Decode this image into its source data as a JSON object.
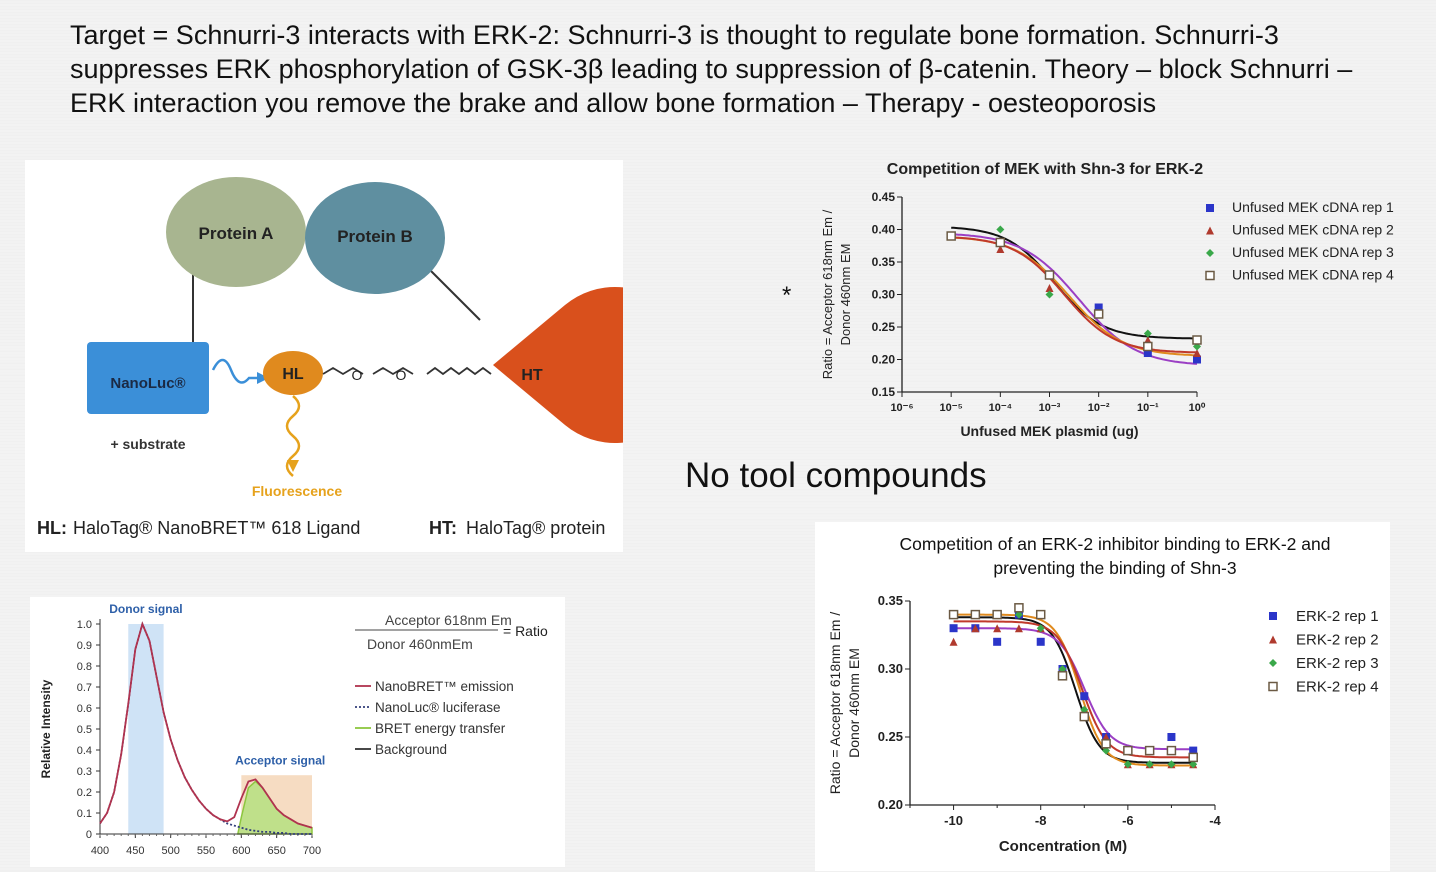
{
  "header": {
    "text": "Target = Schnurri-3 interacts with ERK-2: Schnurri-3 is thought to regulate bone formation. Schnurri-3 suppresses ERK phosphorylation of GSK-3β leading to suppression of β-catenin. Theory – block Schnurri – ERK interaction you remove the brake and allow bone formation – Therapy - oesteoporosis"
  },
  "diagram": {
    "protein_a": "Protein A",
    "protein_b": "Protein B",
    "nanoluc": "NanoLuc®",
    "substrate": "+ substrate",
    "hl": "HL",
    "ht": "HT",
    "fluorescence": "Fluorescence",
    "hl_legend_key": "HL:",
    "hl_legend_text": "HaloTag® NanoBRET™ 618 Ligand",
    "ht_legend_key": "HT:",
    "ht_legend_text": "HaloTag® protein",
    "colors": {
      "protein_a": "#a8b590",
      "protein_b": "#5f8fa0",
      "nanoluc": "#3b8fd8",
      "hl": "#e08a1e",
      "ht": "#d9501c",
      "fluorescence": "#e6a21c"
    }
  },
  "notes": {
    "no_tool": "No tool compounds",
    "asterisk": "*"
  },
  "chart_data": [
    {
      "type": "line",
      "id": "spectrum",
      "title": "",
      "xlabel": "",
      "ylabel": "Relative Intensity",
      "xlim": [
        400,
        700
      ],
      "ylim": [
        0,
        1.0
      ],
      "x_ticks": [
        "400",
        "450",
        "500",
        "550",
        "600",
        "650",
        "700"
      ],
      "y_ticks": [
        "0",
        "0.1",
        "0.2",
        "0.3",
        "0.4",
        "0.5",
        "0.6",
        "0.7",
        "0.8",
        "0.9",
        "1.0"
      ],
      "donor_label": "Donor signal",
      "acceptor_label": "Acceptor signal",
      "donor_band": [
        440,
        490
      ],
      "acceptor_band": [
        600,
        700
      ],
      "formula_num": "Acceptor 618nm Em",
      "formula_den": "Donor 460nmEm",
      "formula_eq": "= Ratio",
      "legend": [
        {
          "label": "NanoBRET™ emission",
          "color": "#b0334f",
          "style": "solid"
        },
        {
          "label": "NanoLuc® luciferase",
          "color": "#333f7a",
          "style": "dotted"
        },
        {
          "label": "BRET energy transfer",
          "color": "#8dc63f",
          "style": "solid"
        },
        {
          "label": "Background",
          "color": "#333333",
          "style": "solid"
        }
      ],
      "series": [
        {
          "name": "NanoBRET™ emission",
          "x": [
            400,
            410,
            420,
            430,
            440,
            450,
            460,
            470,
            480,
            490,
            500,
            510,
            520,
            530,
            540,
            550,
            560,
            570,
            580,
            590,
            600,
            610,
            620,
            630,
            640,
            650,
            660,
            670,
            680,
            690,
            700
          ],
          "y": [
            0.05,
            0.1,
            0.2,
            0.38,
            0.62,
            0.88,
            1.0,
            0.92,
            0.75,
            0.58,
            0.45,
            0.35,
            0.27,
            0.21,
            0.16,
            0.12,
            0.09,
            0.07,
            0.06,
            0.08,
            0.17,
            0.25,
            0.26,
            0.22,
            0.17,
            0.12,
            0.09,
            0.07,
            0.05,
            0.04,
            0.03
          ]
        },
        {
          "name": "NanoLuc® luciferase",
          "x": [
            400,
            410,
            420,
            430,
            440,
            450,
            460,
            470,
            480,
            490,
            500,
            510,
            520,
            530,
            540,
            550,
            560,
            570,
            580,
            590,
            600,
            610,
            620,
            630,
            640,
            650,
            660,
            670,
            680,
            690,
            700
          ],
          "y": [
            0.05,
            0.1,
            0.2,
            0.38,
            0.62,
            0.88,
            1.0,
            0.92,
            0.75,
            0.58,
            0.45,
            0.35,
            0.27,
            0.21,
            0.16,
            0.12,
            0.09,
            0.07,
            0.05,
            0.04,
            0.03,
            0.02,
            0.015,
            0.01,
            0.01,
            0.005,
            0.005,
            0.0,
            0.0,
            0.0,
            0.0
          ]
        },
        {
          "name": "BRET energy transfer",
          "x": [
            595,
            600,
            610,
            620,
            630,
            640,
            650,
            660,
            670,
            680,
            690,
            700
          ],
          "y": [
            0.0,
            0.08,
            0.22,
            0.25,
            0.22,
            0.17,
            0.12,
            0.09,
            0.07,
            0.05,
            0.04,
            0.03
          ]
        }
      ]
    },
    {
      "type": "scatter",
      "id": "mek",
      "title": "Competition of MEK with Shn-3 for ERK-2",
      "xlabel": "Unfused MEK plasmid (ug)",
      "ylabel_line1": "Ratio = Acceptor 618nm Em /",
      "ylabel_line2": "Donor 460nm EM",
      "x_scale": "log",
      "xlim": [
        1e-06,
        1
      ],
      "ylim": [
        0.15,
        0.45
      ],
      "x_ticks": [
        "10⁻⁶",
        "10⁻⁵",
        "10⁻⁴",
        "10⁻³",
        "10⁻²",
        "10⁻¹",
        "10⁰"
      ],
      "y_ticks": [
        "0.15",
        "0.20",
        "0.25",
        "0.30",
        "0.35",
        "0.40",
        "0.45"
      ],
      "legend_position": "top-right",
      "x": [
        1e-05,
        0.0001,
        0.001,
        0.01,
        0.1,
        1
      ],
      "series": [
        {
          "name": "Unfused MEK cDNA rep 1",
          "marker": "square",
          "color": "#2b35c9",
          "values": [
            0.39,
            0.38,
            0.33,
            0.28,
            0.21,
            0.2
          ]
        },
        {
          "name": "Unfused MEK cDNA rep 2",
          "marker": "triangle",
          "color": "#b03a2e",
          "values": [
            0.39,
            0.37,
            0.31,
            0.27,
            0.23,
            0.21
          ]
        },
        {
          "name": "Unfused MEK cDNA rep 3",
          "marker": "diamond",
          "color": "#3aa84a",
          "values": [
            0.39,
            0.4,
            0.3,
            0.27,
            0.24,
            0.22
          ]
        },
        {
          "name": "Unfused MEK cDNA rep 4",
          "marker": "open-square",
          "color": "#6b5a44",
          "values": [
            0.39,
            0.38,
            0.33,
            0.27,
            0.22,
            0.23
          ]
        }
      ],
      "fits": [
        {
          "color": "#111111",
          "top": 0.405,
          "bottom": 0.232,
          "logec50": -2.9,
          "hill": 0.9
        },
        {
          "color": "#9b3fc4",
          "top": 0.395,
          "bottom": 0.19,
          "logec50": -2.4,
          "hill": 0.75
        },
        {
          "color": "#e08a1e",
          "top": 0.39,
          "bottom": 0.205,
          "logec50": -2.6,
          "hill": 0.8
        },
        {
          "color": "#c0392b",
          "top": 0.39,
          "bottom": 0.21,
          "logec50": -2.7,
          "hill": 0.85
        }
      ]
    },
    {
      "type": "scatter",
      "id": "erk",
      "title": "Competition of an ERK-2 inhibitor binding to ERK-2 and preventing the binding of Shn-3",
      "xlabel": "Concentration (M)",
      "ylabel_line1": "Ratio = Acceptor 618nm Em /",
      "ylabel_line2": "Donor 460nm EM",
      "xlim": [
        -11,
        -4
      ],
      "ylim": [
        0.2,
        0.35
      ],
      "x_ticks": [
        "-10",
        "-8",
        "-6",
        "-4"
      ],
      "x_tick_values": [
        -10,
        -8,
        -6,
        -4
      ],
      "y_ticks": [
        "0.20",
        "0.25",
        "0.30",
        "0.35"
      ],
      "y_tick_values": [
        0.2,
        0.25,
        0.3,
        0.35
      ],
      "legend_position": "top-right",
      "x": [
        -10,
        -9.5,
        -9,
        -8.5,
        -8,
        -7.5,
        -7,
        -6.5,
        -6,
        -5.5,
        -5,
        -4.5
      ],
      "series": [
        {
          "name": "ERK-2 rep 1",
          "marker": "square",
          "color": "#2b35c9",
          "values": [
            0.33,
            0.33,
            0.32,
            0.34,
            0.32,
            0.3,
            0.28,
            0.25,
            0.24,
            0.24,
            0.25,
            0.24
          ]
        },
        {
          "name": "ERK-2 rep 2",
          "marker": "triangle",
          "color": "#b03a2e",
          "values": [
            0.32,
            0.33,
            0.33,
            0.33,
            0.33,
            0.3,
            0.27,
            0.25,
            0.23,
            0.23,
            0.23,
            0.23
          ]
        },
        {
          "name": "ERK-2 rep 3",
          "marker": "diamond",
          "color": "#3aa84a",
          "values": [
            0.34,
            0.34,
            0.34,
            0.34,
            0.33,
            0.3,
            0.27,
            0.24,
            0.23,
            0.23,
            0.23,
            0.23
          ]
        },
        {
          "name": "ERK-2 rep 4",
          "marker": "open-square",
          "color": "#6b5a44",
          "values": [
            0.34,
            0.34,
            0.34,
            0.345,
            0.34,
            0.295,
            0.265,
            0.245,
            0.24,
            0.24,
            0.24,
            0.235
          ]
        }
      ],
      "fits": [
        {
          "color": "#111111",
          "top": 0.338,
          "bottom": 0.231,
          "logec50": -7.2,
          "hill": 1.6
        },
        {
          "color": "#9b3fc4",
          "top": 0.33,
          "bottom": 0.241,
          "logec50": -7.0,
          "hill": 1.5
        },
        {
          "color": "#e08a1e",
          "top": 0.34,
          "bottom": 0.229,
          "logec50": -7.1,
          "hill": 1.6
        },
        {
          "color": "#c0392b",
          "top": 0.335,
          "bottom": 0.235,
          "logec50": -7.05,
          "hill": 1.55
        }
      ]
    }
  ]
}
